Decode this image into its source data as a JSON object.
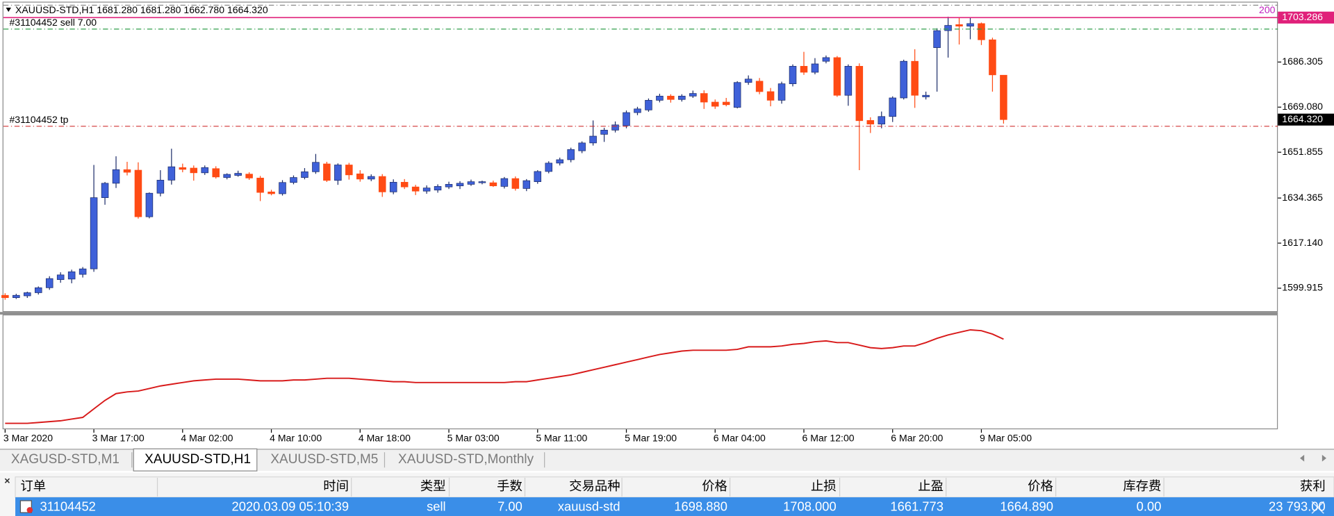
{
  "chart_data": {
    "type": "candlestick",
    "header": "XAUUSD-STD,H1  1681.280 1681.280 1662.780 1664.320",
    "indicator_tag": "200",
    "up_color": "#3f61d9",
    "down_color": "#ff4b14",
    "ylim": [
      1591,
      1710
    ],
    "yticks": [
      1703.286,
      1686.305,
      {
        "value": 1669.08,
        "label": "1669.080"
      },
      1651.855,
      1634.365,
      {
        "value": 1617.14,
        "label": "1617.140"
      },
      1599.915
    ],
    "hline": {
      "value": 1703.286,
      "label": "1703.286",
      "color": "#e0207a"
    },
    "bid": {
      "value": 1664.32,
      "label": "1664.320"
    },
    "order_lines": [
      {
        "label": "#31104452 sell 7.00",
        "value": 1698.88,
        "color": "#2e9e4a"
      },
      {
        "label": "#31104452 tp",
        "value": 1661.773,
        "color": "#d03030"
      },
      {
        "value": 1708,
        "color": "#888888"
      }
    ],
    "categories": [
      "3 Mar 2020",
      null,
      null,
      null,
      null,
      null,
      null,
      null,
      "3 Mar 17:00",
      null,
      null,
      null,
      null,
      null,
      null,
      null,
      "4 Mar 02:00",
      null,
      null,
      null,
      null,
      null,
      null,
      null,
      "4 Mar 10:00",
      null,
      null,
      null,
      null,
      null,
      null,
      null,
      "4 Mar 18:00",
      null,
      null,
      null,
      null,
      null,
      null,
      null,
      "5 Mar 03:00",
      null,
      null,
      null,
      null,
      null,
      null,
      null,
      "5 Mar 11:00",
      null,
      null,
      null,
      null,
      null,
      null,
      null,
      "5 Mar 19:00",
      null,
      null,
      null,
      null,
      null,
      null,
      null,
      "6 Mar 04:00",
      null,
      null,
      null,
      null,
      null,
      null,
      null,
      "6 Mar 12:00",
      null,
      null,
      null,
      null,
      null,
      null,
      null,
      "6 Mar 20:00",
      null,
      null,
      null,
      null,
      null,
      null,
      null,
      "9 Mar 05:00",
      null,
      null
    ],
    "open": [
      1597.2,
      1596.3,
      1597.0,
      1598.2,
      1600.1,
      1603.2,
      1603.4,
      1605.2,
      1607.3,
      1634.5,
      1640.0,
      1645.2,
      1645.0,
      1627.2,
      1636.2,
      1641.2,
      1646.0,
      1645.8,
      1644.0,
      1645.6,
      1642.2,
      1643.0,
      1643.5,
      1642.0,
      1636.7,
      1636.0,
      1640.3,
      1642.2,
      1644.4,
      1647.4,
      1641.1,
      1647.0,
      1643.6,
      1641.6,
      1642.6,
      1636.7,
      1640.4,
      1638.6,
      1637.0,
      1637.4,
      1638.6,
      1639.0,
      1639.6,
      1640.2,
      1640.2,
      1638.8,
      1641.8,
      1638.0,
      1640.6,
      1644.5,
      1647.7,
      1649.0,
      1652.4,
      1655.4,
      1658.7,
      1660.3,
      1662.0,
      1667.0,
      1668.0,
      1671.7,
      1673.3,
      1672.0,
      1673.3,
      1674.3,
      1671.0,
      1671.0,
      1669.0,
      1678.5,
      1679.0,
      1675.0,
      1671.7,
      1678.0,
      1684.7,
      1682.4,
      1686.6,
      1688.0,
      1673.6,
      1684.7,
      1664.0,
      1662.6,
      1665.5,
      1672.6,
      1686.6,
      1673.0,
      1691.8,
      1698.3,
      1700.6,
      1700.0,
      1701.0,
      1694.8,
      1681.28
    ],
    "high": [
      1598.0,
      1597.8,
      1598.6,
      1600.6,
      1604.5,
      1606.0,
      1607.0,
      1608.0,
      1647.0,
      1640.5,
      1650.3,
      1648.2,
      1648.0,
      1636.5,
      1645.0,
      1653.2,
      1647.5,
      1646.8,
      1646.8,
      1646.5,
      1643.8,
      1644.8,
      1644.2,
      1642.8,
      1637.5,
      1641.2,
      1643.0,
      1645.8,
      1651.2,
      1648.2,
      1647.6,
      1647.8,
      1645.0,
      1643.4,
      1643.5,
      1641.5,
      1641.6,
      1639.4,
      1639.2,
      1639.6,
      1640.6,
      1640.8,
      1641.4,
      1641.0,
      1641.0,
      1642.4,
      1642.6,
      1641.6,
      1645.0,
      1648.4,
      1649.8,
      1653.6,
      1656.0,
      1664.0,
      1661.2,
      1663.6,
      1667.8,
      1669.2,
      1672.4,
      1674.2,
      1674.0,
      1674.0,
      1675.4,
      1675.5,
      1672.0,
      1672.6,
      1679.0,
      1681.2,
      1680.2,
      1676.4,
      1678.8,
      1685.4,
      1690.2,
      1687.8,
      1688.8,
      1688.6,
      1685.4,
      1685.8,
      1665.2,
      1667.4,
      1673.2,
      1687.2,
      1691.2,
      1675.0,
      1699.2,
      1703.6,
      1703.5,
      1703.5,
      1701.4,
      1695.6,
      1681.28
    ],
    "low": [
      1595.5,
      1595.8,
      1596.2,
      1597.5,
      1599.3,
      1602.0,
      1601.8,
      1604.0,
      1606.2,
      1631.8,
      1638.2,
      1643.0,
      1626.5,
      1626.6,
      1635.0,
      1639.5,
      1644.2,
      1641.0,
      1643.2,
      1641.8,
      1641.5,
      1642.5,
      1641.3,
      1633.2,
      1635.4,
      1635.3,
      1639.6,
      1641.5,
      1643.6,
      1640.5,
      1639.4,
      1641.4,
      1640.6,
      1640.8,
      1634.8,
      1635.8,
      1637.8,
      1635.5,
      1636.0,
      1636.4,
      1637.8,
      1637.8,
      1639.0,
      1639.6,
      1638.6,
      1638.0,
      1637.2,
      1637.0,
      1639.8,
      1643.8,
      1646.8,
      1648.0,
      1651.5,
      1654.4,
      1655.8,
      1659.4,
      1661.0,
      1666.0,
      1667.3,
      1670.9,
      1670.8,
      1671.2,
      1672.6,
      1668.4,
      1668.4,
      1669.4,
      1668.6,
      1677.6,
      1674.0,
      1669.4,
      1670.4,
      1677.0,
      1681.4,
      1681.6,
      1685.8,
      1673.0,
      1669.6,
      1645.0,
      1659.2,
      1661.0,
      1663.4,
      1672.0,
      1668.8,
      1672.0,
      1675.0,
      1688.0,
      1693.0,
      1695.0,
      1692.8,
      1675.0,
      1662.78
    ],
    "close": [
      1596.3,
      1597.2,
      1598.2,
      1600.1,
      1603.6,
      1605.0,
      1606.2,
      1607.3,
      1634.5,
      1640.0,
      1645.2,
      1644.2,
      1627.2,
      1636.2,
      1641.2,
      1646.3,
      1645.3,
      1644.0,
      1646.0,
      1642.4,
      1643.4,
      1643.8,
      1642.0,
      1636.5,
      1636.0,
      1640.3,
      1642.2,
      1644.4,
      1648.0,
      1641.1,
      1647.0,
      1643.2,
      1641.6,
      1642.6,
      1636.7,
      1640.4,
      1638.6,
      1637.0,
      1638.2,
      1638.8,
      1639.6,
      1640.0,
      1640.6,
      1640.6,
      1639.0,
      1641.8,
      1638.0,
      1641.0,
      1644.5,
      1647.7,
      1649.0,
      1652.9,
      1655.4,
      1658.0,
      1660.3,
      1662.3,
      1667.0,
      1668.4,
      1671.7,
      1673.3,
      1672.0,
      1673.3,
      1674.3,
      1671.0,
      1669.4,
      1670.0,
      1678.5,
      1679.8,
      1675.0,
      1671.7,
      1678.0,
      1684.7,
      1682.4,
      1685.6,
      1688.0,
      1673.6,
      1684.7,
      1663.9,
      1662.6,
      1665.5,
      1672.6,
      1686.6,
      1673.6,
      1673.6,
      1698.3,
      1700.3,
      1700.0,
      1701.0,
      1694.8,
      1681.4,
      1664.32
    ],
    "indicator": {
      "color": "#d81a1a",
      "values": [
        7,
        7,
        7,
        8,
        9,
        10,
        12,
        14,
        24,
        34,
        42,
        44,
        45,
        48,
        51,
        53,
        55,
        57,
        58,
        59,
        59,
        59,
        58,
        57,
        57,
        57,
        58,
        58,
        59,
        60,
        60,
        60,
        59,
        58,
        57,
        56,
        56,
        55,
        55,
        55,
        55,
        55,
        55,
        55,
        55,
        55,
        56,
        56,
        58,
        60,
        62,
        64,
        67,
        70,
        73,
        76,
        79,
        82,
        85,
        88,
        90,
        92,
        93,
        93,
        93,
        93,
        94,
        97,
        97,
        97,
        98,
        100,
        101,
        103,
        104,
        102,
        102,
        99,
        96,
        95,
        96,
        98,
        98,
        102,
        107,
        111,
        114,
        117,
        116,
        112,
        106
      ]
    }
  },
  "tabs": {
    "items": [
      "XAGUSD-STD,M1",
      "XAUUSD-STD,H1",
      "XAUUSD-STD,M5",
      "XAUUSD-STD,Monthly"
    ],
    "active": 1
  },
  "table": {
    "headers": [
      "订单",
      "时间",
      "类型",
      "手数",
      "交易品种",
      "价格",
      "止损",
      "止盈",
      "价格",
      "库存费",
      "获利"
    ],
    "rows": [
      [
        "31104452",
        "2020.03.09 05:10:39",
        "sell",
        "7.00",
        "xauusd-std",
        "1698.880",
        "1708.000",
        "1661.773",
        "1664.890",
        "0.00",
        "23 793.00"
      ]
    ]
  }
}
